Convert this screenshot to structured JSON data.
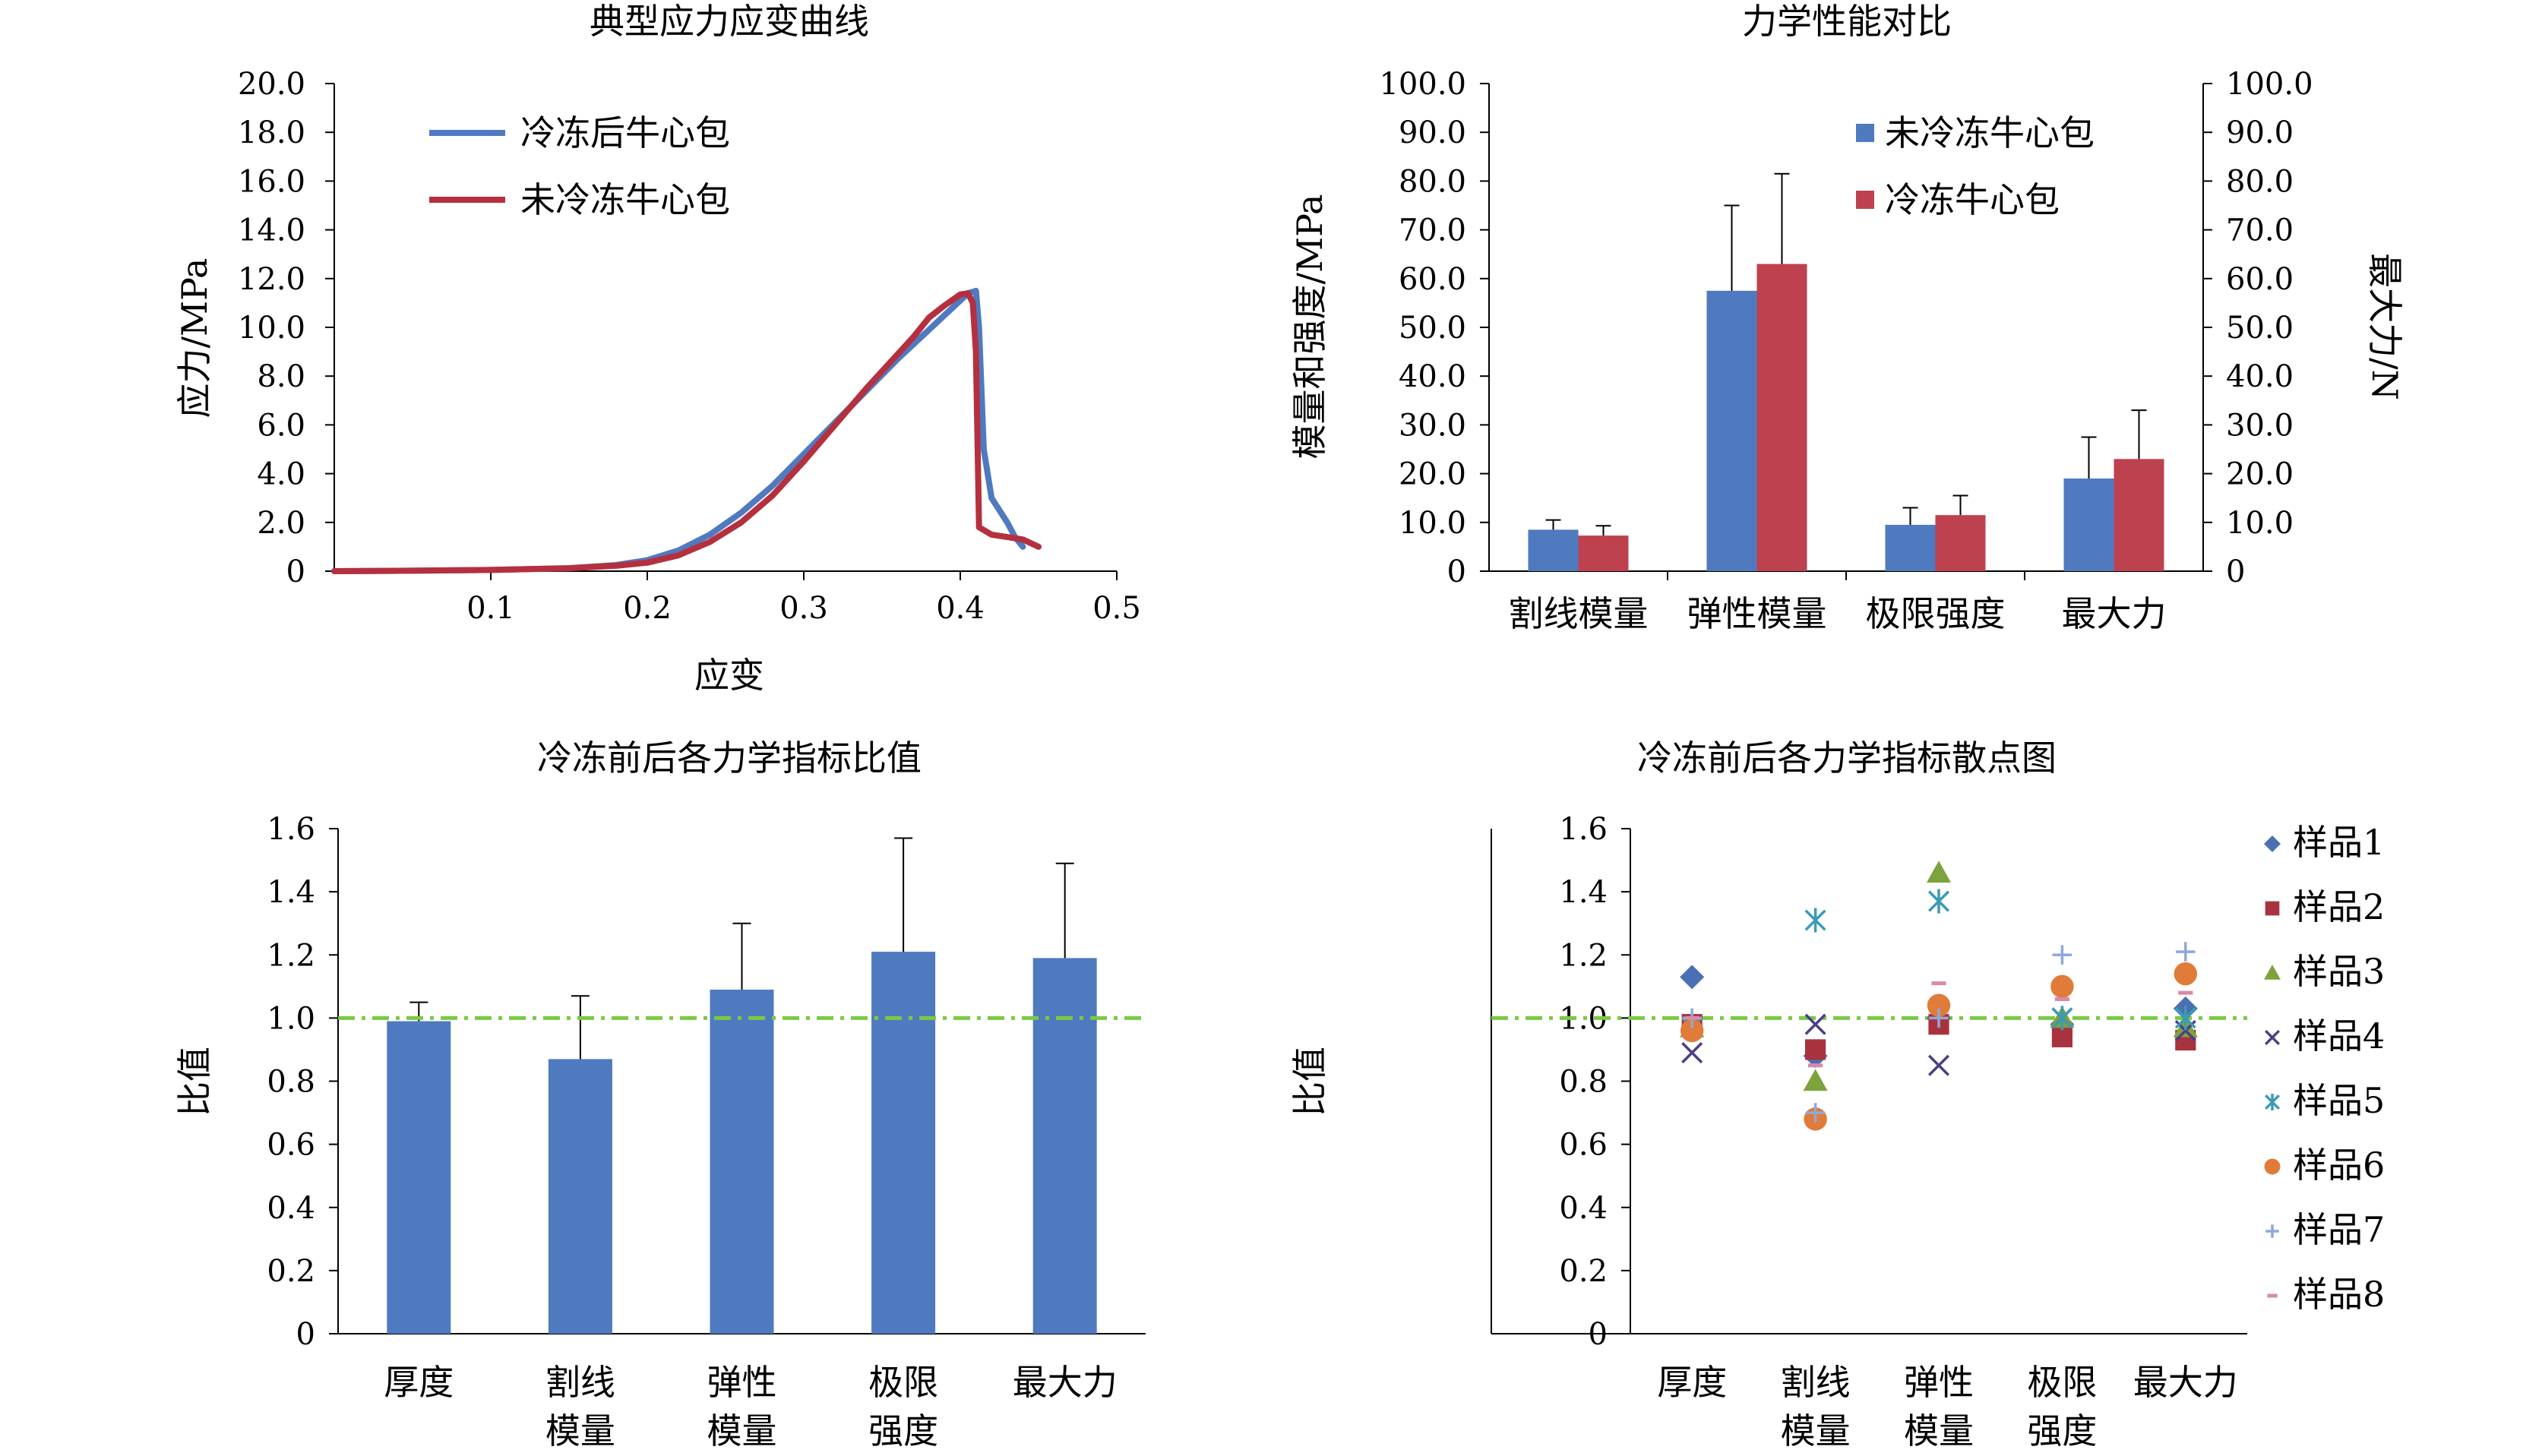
{
  "colors": {
    "blue": "#4F7ABF",
    "red": "#B5303E",
    "red_bar": "#BE4150",
    "green_ref": "#7AC943",
    "axis": "#000000"
  },
  "chart_data": [
    {
      "type": "line",
      "title": "典型应力应变曲线",
      "xlabel": "应变",
      "ylabel": "应力/MPa",
      "xlim": [
        0,
        0.5
      ],
      "ylim": [
        0,
        20
      ],
      "xticks": [
        "0.1",
        "0.2",
        "0.3",
        "0.4",
        "0.5"
      ],
      "yticks": [
        "0",
        "2.0",
        "4.0",
        "6.0",
        "8.0",
        "10.0",
        "12.0",
        "14.0",
        "16.0",
        "18.0",
        "20.0"
      ],
      "legend_position": "top-left",
      "series": [
        {
          "name": "冷冻后牛心包",
          "color": "blue",
          "x": [
            0.0,
            0.05,
            0.1,
            0.15,
            0.18,
            0.2,
            0.22,
            0.24,
            0.26,
            0.28,
            0.3,
            0.32,
            0.34,
            0.36,
            0.38,
            0.39,
            0.4,
            0.405,
            0.41,
            0.412,
            0.415,
            0.42,
            0.43,
            0.435,
            0.44
          ],
          "y": [
            0.0,
            0.02,
            0.05,
            0.12,
            0.25,
            0.45,
            0.85,
            1.5,
            2.4,
            3.5,
            4.8,
            6.1,
            7.4,
            8.7,
            9.9,
            10.5,
            11.1,
            11.4,
            11.5,
            10.0,
            5.0,
            3.0,
            2.0,
            1.4,
            1.0
          ]
        },
        {
          "name": "未冷冻牛心包",
          "color": "red",
          "x": [
            0.0,
            0.05,
            0.1,
            0.15,
            0.18,
            0.2,
            0.22,
            0.24,
            0.26,
            0.28,
            0.3,
            0.32,
            0.34,
            0.36,
            0.37,
            0.38,
            0.39,
            0.4,
            0.405,
            0.408,
            0.41,
            0.412,
            0.42,
            0.43,
            0.44,
            0.45
          ],
          "y": [
            0.0,
            0.02,
            0.05,
            0.12,
            0.22,
            0.35,
            0.65,
            1.2,
            2.0,
            3.1,
            4.5,
            6.0,
            7.5,
            8.9,
            9.6,
            10.4,
            10.9,
            11.35,
            11.4,
            11.0,
            9.0,
            1.8,
            1.5,
            1.4,
            1.3,
            1.0
          ]
        }
      ]
    },
    {
      "type": "bar",
      "title": "力学性能对比",
      "ylabel": "模量和强度/MPa",
      "y2label": "最大力/N",
      "ylim": [
        0,
        100
      ],
      "y2lim": [
        0,
        100
      ],
      "yticks": [
        "0",
        "10.0",
        "20.0",
        "30.0",
        "40.0",
        "50.0",
        "60.0",
        "70.0",
        "80.0",
        "90.0",
        "100.0"
      ],
      "y2ticks": [
        "0",
        "10.0",
        "20.0",
        "30.0",
        "40.0",
        "50.0",
        "60.0",
        "70.0",
        "80.0",
        "90.0",
        "100.0"
      ],
      "legend_position": "top-right",
      "categories": [
        "割线模量",
        "弹性模量",
        "极限强度",
        "最大力"
      ],
      "series": [
        {
          "name": "未冷冻牛心包",
          "color": "blue",
          "values": [
            8.5,
            57.5,
            9.5,
            19.0
          ],
          "errors": [
            2.0,
            17.5,
            3.5,
            8.5
          ]
        },
        {
          "name": "冷冻牛心包",
          "color": "red_bar",
          "values": [
            7.3,
            63.0,
            11.5,
            23.0
          ],
          "errors": [
            2.0,
            18.5,
            4.0,
            10.0
          ]
        }
      ]
    },
    {
      "type": "bar",
      "title": "冷冻前后各力学指标比值",
      "ylabel": "比值",
      "ylim": [
        0,
        1.6
      ],
      "yticks": [
        "0",
        "0.2",
        "0.4",
        "0.6",
        "0.8",
        "1.0",
        "1.2",
        "1.4",
        "1.6"
      ],
      "reference_line": 1.0,
      "categories": [
        [
          "厚度"
        ],
        [
          "割线",
          "模量"
        ],
        [
          "弹性",
          "模量"
        ],
        [
          "极限",
          "强度"
        ],
        [
          "最大力"
        ]
      ],
      "series": [
        {
          "color": "blue",
          "values": [
            0.99,
            0.87,
            1.09,
            1.21,
            1.19
          ],
          "errors": [
            0.06,
            0.2,
            0.21,
            0.36,
            0.3
          ]
        }
      ]
    },
    {
      "type": "scatter",
      "title": "冷冻前后各力学指标散点图",
      "ylabel": "比值",
      "ylim": [
        0,
        1.6
      ],
      "yticks": [
        "0",
        "0.2",
        "0.4",
        "0.6",
        "0.8",
        "1.0",
        "1.2",
        "1.4",
        "1.6"
      ],
      "reference_line": 1.0,
      "legend_position": "right",
      "categories": [
        [
          "厚度"
        ],
        [
          "割线",
          "模量"
        ],
        [
          "弹性",
          "模量"
        ],
        [
          "极限",
          "强度"
        ],
        [
          "最大力"
        ]
      ],
      "series": [
        {
          "name": "样品1",
          "marker": "diamond",
          "color": "#4A6FB5",
          "values": [
            1.13,
            0.88,
            1.0,
            0.98,
            1.03
          ]
        },
        {
          "name": "样品2",
          "marker": "square",
          "color": "#A8333F",
          "values": [
            0.98,
            0.9,
            0.98,
            0.94,
            0.93
          ]
        },
        {
          "name": "样品3",
          "marker": "triangle",
          "color": "#7EA23C",
          "values": [
            0.97,
            0.8,
            1.46,
            1.0,
            0.97
          ]
        },
        {
          "name": "样品4",
          "marker": "x",
          "color": "#4B3E86",
          "values": [
            0.89,
            0.98,
            0.85,
            1.0,
            0.96
          ]
        },
        {
          "name": "样品5",
          "marker": "asterisk",
          "color": "#3C9BB4",
          "values": [
            0.97,
            1.31,
            1.37,
            1.0,
            1.0
          ]
        },
        {
          "name": "样品6",
          "marker": "circle",
          "color": "#E07B39",
          "values": [
            0.96,
            0.68,
            1.04,
            1.1,
            1.14
          ]
        },
        {
          "name": "样品7",
          "marker": "plus",
          "color": "#8EA9D8",
          "values": [
            1.0,
            0.7,
            1.0,
            1.2,
            1.21
          ]
        },
        {
          "name": "样品8",
          "marker": "dash",
          "color": "#D98AA8",
          "values": [
            1.0,
            0.85,
            1.11,
            1.06,
            1.08
          ]
        }
      ]
    }
  ]
}
